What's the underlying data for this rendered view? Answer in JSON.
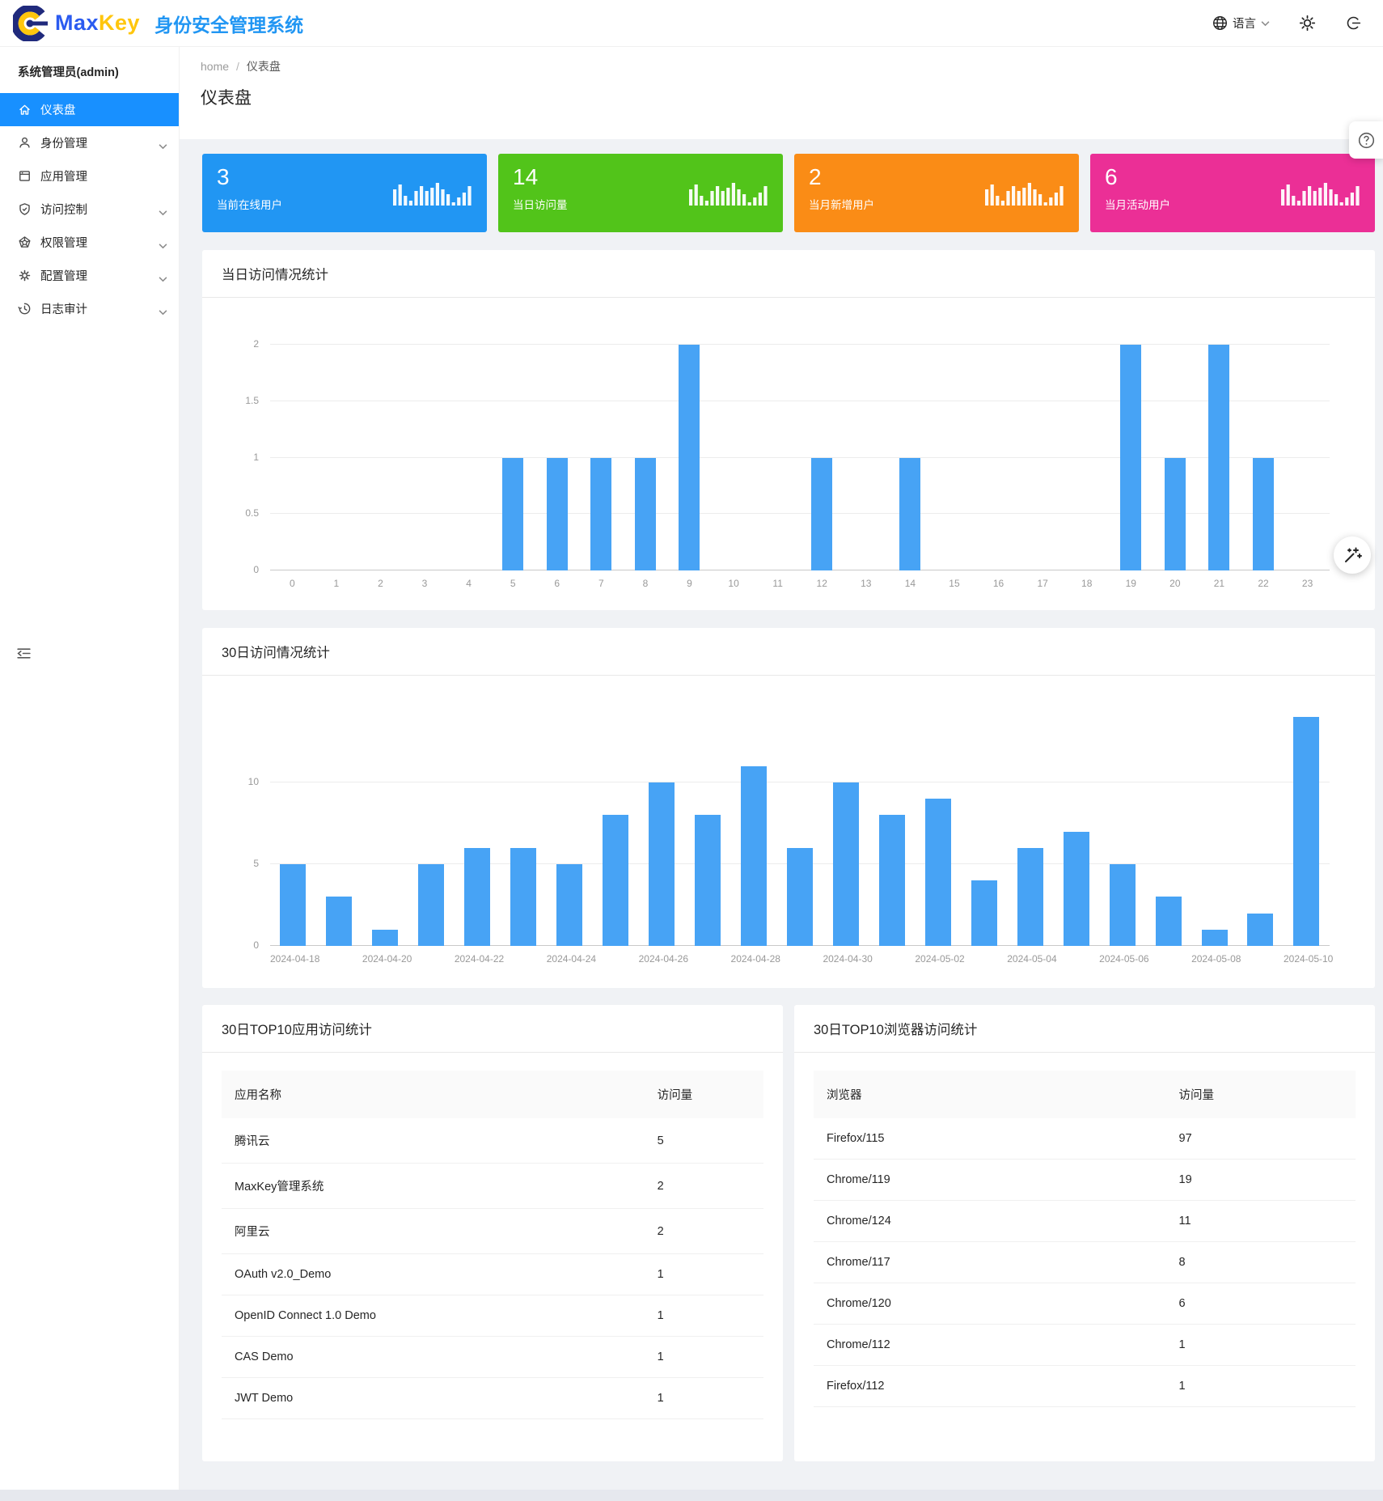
{
  "app": {
    "brand_max": "Max",
    "brand_key": "Key",
    "brand_title": "身份安全管理系统",
    "language_label": "语言"
  },
  "sidebar": {
    "user_title": "系统管理员(admin)",
    "items": [
      {
        "key": "dashboard",
        "label": "仪表盘",
        "icon": "home-icon",
        "active": true,
        "chevron": false
      },
      {
        "key": "identity",
        "label": "身份管理",
        "icon": "user-icon",
        "active": false,
        "chevron": true
      },
      {
        "key": "apps",
        "label": "应用管理",
        "icon": "app-window-icon",
        "active": false,
        "chevron": false
      },
      {
        "key": "access",
        "label": "访问控制",
        "icon": "shield-check-icon",
        "active": false,
        "chevron": true
      },
      {
        "key": "permissions",
        "label": "权限管理",
        "icon": "pentagon-icon",
        "active": false,
        "chevron": true
      },
      {
        "key": "config",
        "label": "配置管理",
        "icon": "gear-icon",
        "active": false,
        "chevron": true
      },
      {
        "key": "audit",
        "label": "日志审计",
        "icon": "history-icon",
        "active": false,
        "chevron": true
      }
    ]
  },
  "breadcrumb": {
    "home": "home",
    "separator": "/",
    "current": "仪表盘"
  },
  "page": {
    "title": "仪表盘"
  },
  "stat_cards": [
    {
      "value": "3",
      "label": "当前在线用户",
      "color": "#2196F3"
    },
    {
      "value": "14",
      "label": "当日访问量",
      "color": "#52C41A"
    },
    {
      "value": "2",
      "label": "当月新增用户",
      "color": "#FA8C16"
    },
    {
      "value": "6",
      "label": "当月活动用户",
      "color": "#EB2F96"
    }
  ],
  "chart_data": [
    {
      "type": "bar",
      "title": "当日访问情况统计",
      "categories": [
        "0",
        "1",
        "2",
        "3",
        "4",
        "5",
        "6",
        "7",
        "8",
        "9",
        "10",
        "11",
        "12",
        "13",
        "14",
        "15",
        "16",
        "17",
        "18",
        "19",
        "20",
        "21",
        "22",
        "23"
      ],
      "values": [
        0,
        0,
        0,
        0,
        0,
        1,
        1,
        1,
        1,
        2,
        0,
        0,
        1,
        0,
        1,
        0,
        0,
        0,
        0,
        2,
        1,
        2,
        1,
        0
      ],
      "xlabel": "",
      "ylabel": "",
      "ylim": [
        0,
        2
      ],
      "yticks": [
        0,
        0.5,
        1,
        1.5,
        2
      ],
      "grid": true,
      "legend": "none",
      "bar_color": "#47A3F5"
    },
    {
      "type": "bar",
      "title": "30日访问情况统计",
      "categories": [
        "2024-04-18",
        "2024-04-19",
        "2024-04-20",
        "2024-04-21",
        "2024-04-22",
        "2024-04-23",
        "2024-04-24",
        "2024-04-25",
        "2024-04-26",
        "2024-04-27",
        "2024-04-28",
        "2024-04-29",
        "2024-04-30",
        "2024-05-01",
        "2024-05-02",
        "2024-05-03",
        "2024-05-04",
        "2024-05-05",
        "2024-05-06",
        "2024-05-07",
        "2024-05-08",
        "2024-05-09",
        "2024-05-10"
      ],
      "values": [
        5,
        3,
        1,
        5,
        6,
        6,
        5,
        8,
        10,
        8,
        11,
        6,
        10,
        8,
        9,
        4,
        6,
        7,
        5,
        3,
        1,
        2,
        14
      ],
      "xlabel": "",
      "ylabel": "",
      "ylim": [
        0,
        15
      ],
      "yticks": [
        0,
        5,
        10
      ],
      "x_tick_every": 2,
      "grid": true,
      "legend": "none",
      "bar_color": "#47A3F5"
    }
  ],
  "tables": {
    "apps": {
      "title": "30日TOP10应用访问统计",
      "headers": [
        "应用名称",
        "访问量"
      ],
      "rows": [
        {
          "name": "腾讯云",
          "visits": "5"
        },
        {
          "name": "MaxKey管理系统",
          "visits": "2"
        },
        {
          "name": "阿里云",
          "visits": "2"
        },
        {
          "name": "OAuth v2.0_Demo",
          "visits": "1"
        },
        {
          "name": "OpenID Connect 1.0 Demo",
          "visits": "1"
        },
        {
          "name": "CAS Demo",
          "visits": "1"
        },
        {
          "name": "JWT Demo",
          "visits": "1"
        }
      ]
    },
    "browsers": {
      "title": "30日TOP10浏览器访问统计",
      "headers": [
        "浏览器",
        "访问量"
      ],
      "rows": [
        {
          "name": "Firefox/115",
          "visits": "97"
        },
        {
          "name": "Chrome/119",
          "visits": "19"
        },
        {
          "name": "Chrome/124",
          "visits": "11"
        },
        {
          "name": "Chrome/117",
          "visits": "8"
        },
        {
          "name": "Chrome/120",
          "visits": "6"
        },
        {
          "name": "Chrome/112",
          "visits": "1"
        },
        {
          "name": "Firefox/112",
          "visits": "1"
        }
      ]
    }
  }
}
